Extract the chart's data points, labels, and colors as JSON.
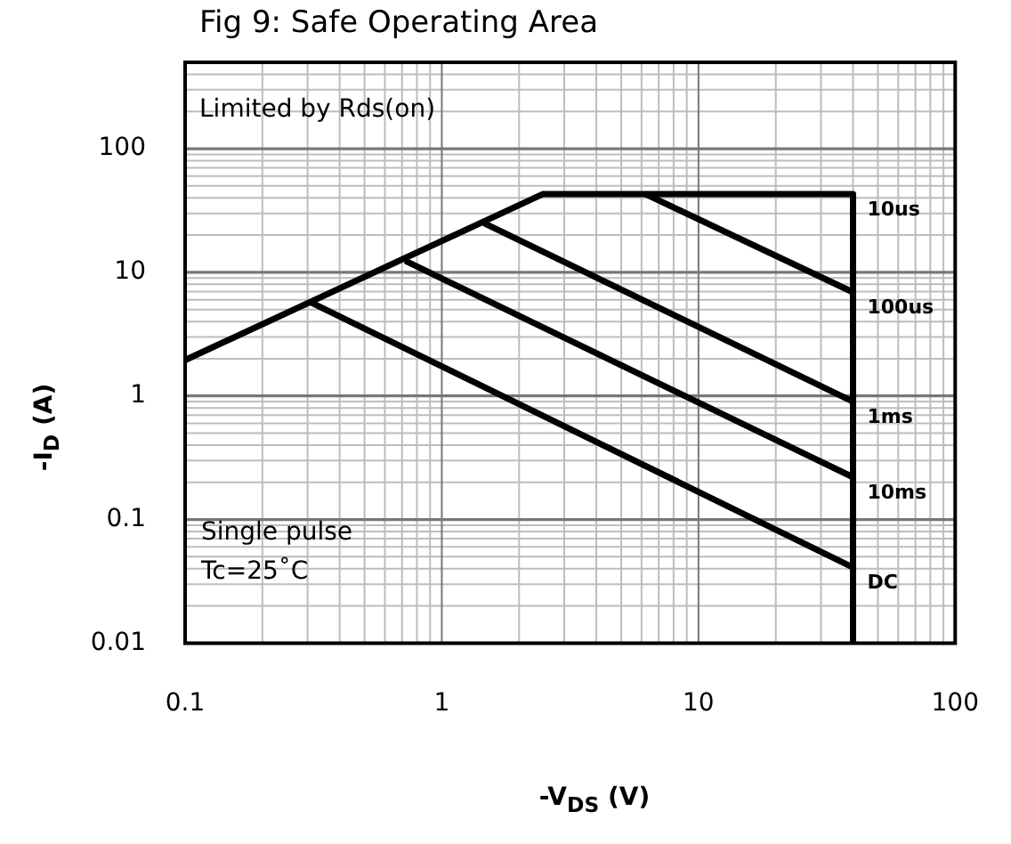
{
  "chart_data": {
    "type": "line",
    "title": "Fig 9: Safe Operating Area",
    "xlabel": "-V$_{DS}$ (V)",
    "ylabel": "-I$_{D}$ (A)",
    "log": "xy",
    "grid": true,
    "marker": "none",
    "xlim": [
      0.1,
      100
    ],
    "ylim": [
      0.01,
      500
    ],
    "xticks": [
      0.1,
      1,
      10,
      100
    ],
    "yticks": [
      0.01,
      0.1,
      1,
      10,
      100
    ],
    "series": [
      {
        "name": "10us",
        "color": "#000000",
        "x": [
          0.1,
          2.48,
          40,
          40
        ],
        "values": [
          1.95,
          43,
          43,
          0.01
        ]
      },
      {
        "name": "100us",
        "color": "#000000",
        "x": [
          6.2,
          40
        ],
        "values": [
          43,
          6.9
        ]
      },
      {
        "name": "1ms",
        "color": "#000000",
        "x": [
          1.46,
          40
        ],
        "values": [
          25,
          0.9
        ]
      },
      {
        "name": "10ms",
        "color": "#000000",
        "x": [
          0.72,
          40
        ],
        "values": [
          12.4,
          0.22
        ]
      },
      {
        "name": "DC",
        "color": "#000000",
        "x": [
          0.31,
          40
        ],
        "values": [
          5.7,
          0.041
        ]
      }
    ],
    "annotations": [
      "Limited by Rds(on)",
      "Single pulse",
      "Tc=25˚C"
    ]
  }
}
